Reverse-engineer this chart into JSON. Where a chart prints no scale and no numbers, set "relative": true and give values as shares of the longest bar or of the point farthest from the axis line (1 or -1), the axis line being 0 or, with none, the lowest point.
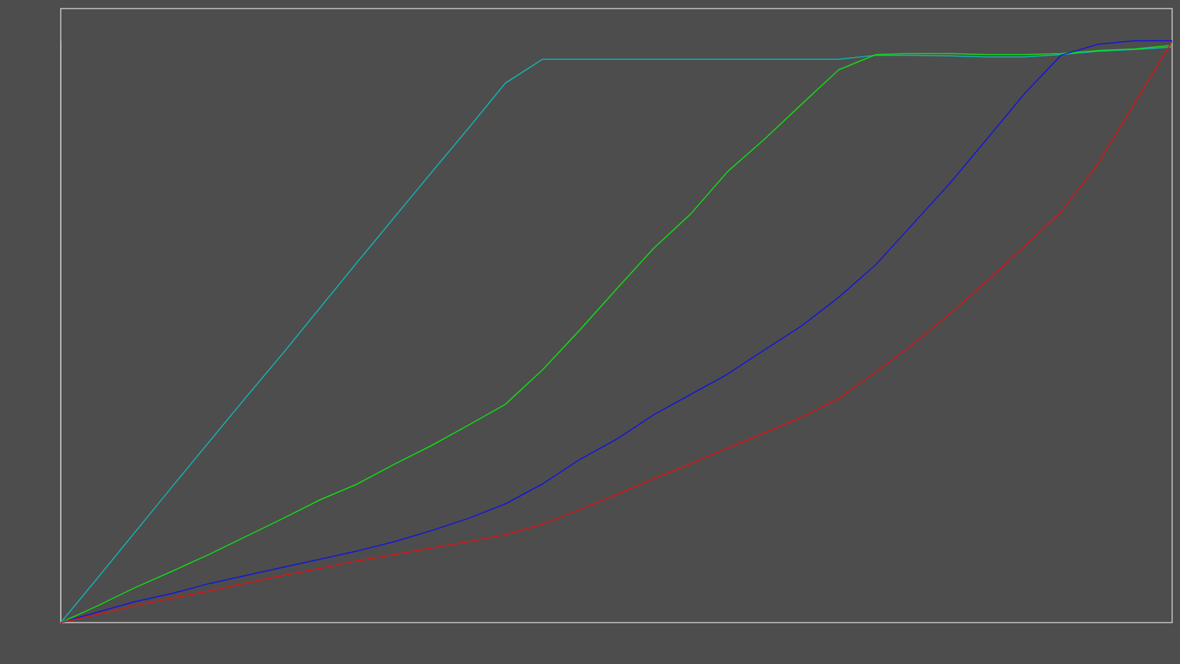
{
  "chart_data": {
    "type": "line",
    "relative": true,
    "grid": false,
    "categories": [
      null,
      null,
      null,
      null,
      null,
      null,
      null,
      null,
      null,
      null,
      null,
      null,
      null,
      null,
      null,
      null,
      null,
      null,
      null,
      null,
      null,
      null,
      null,
      null,
      null,
      null,
      null,
      null,
      null,
      null,
      null
    ],
    "series": [
      {
        "color": "#14b4b4",
        "values": [
          0,
          0.077,
          0.155,
          0.233,
          0.31,
          0.387,
          0.463,
          0.541,
          0.619,
          0.696,
          0.773,
          0.849,
          0.927,
          0.968,
          0.968,
          0.968,
          0.968,
          0.968,
          0.968,
          0.968,
          0.968,
          0.968,
          0.975,
          0.975,
          0.974,
          0.972,
          0.972,
          0.976,
          0.982,
          0.985,
          0.989
        ]
      },
      {
        "color": "#10e010",
        "values": [
          0,
          0.029,
          0.06,
          0.088,
          0.117,
          0.148,
          0.179,
          0.211,
          0.238,
          0.272,
          0.304,
          0.339,
          0.375,
          0.434,
          0.502,
          0.573,
          0.643,
          0.702,
          0.775,
          0.831,
          0.891,
          0.95,
          0.976,
          0.978,
          0.978,
          0.976,
          0.976,
          0.978,
          0.983,
          0.986,
          0.992
        ]
      },
      {
        "color": "#1414e0",
        "values": [
          0,
          0.018,
          0.036,
          0.05,
          0.067,
          0.081,
          0.095,
          0.109,
          0.123,
          0.139,
          0.158,
          0.179,
          0.204,
          0.238,
          0.28,
          0.315,
          0.357,
          0.392,
          0.427,
          0.469,
          0.51,
          0.559,
          0.615,
          0.685,
          0.755,
          0.831,
          0.908,
          0.975,
          0.994,
          1,
          1
        ]
      },
      {
        "color": "#e01414",
        "values": [
          0,
          0.014,
          0.029,
          0.042,
          0.054,
          0.068,
          0.081,
          0.093,
          0.106,
          0.117,
          0.128,
          0.139,
          0.151,
          0.169,
          0.194,
          0.22,
          0.247,
          0.273,
          0.3,
          0.326,
          0.353,
          0.385,
          0.431,
          0.478,
          0.531,
          0.587,
          0.646,
          0.706,
          0.789,
          0.894,
          0.999
        ]
      }
    ]
  }
}
